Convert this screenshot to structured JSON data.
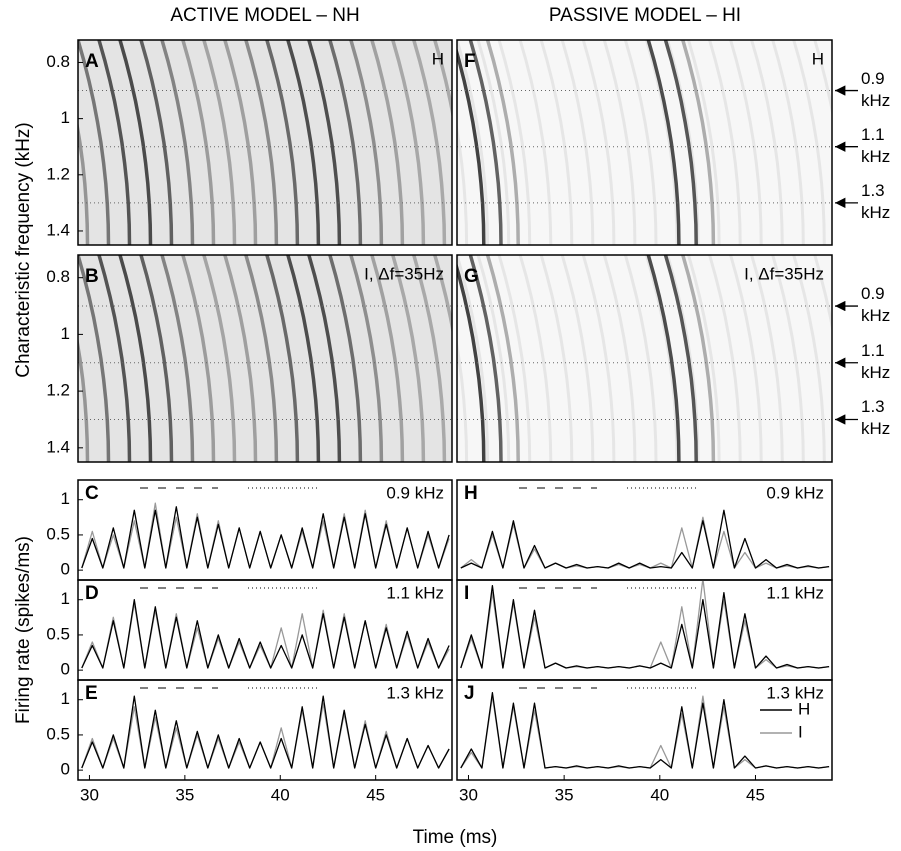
{
  "title_left": "ACTIVE MODEL – NH",
  "title_right": "PASSIVE MODEL – HI",
  "ylabel_top": "Characteristic frequency (kHz)",
  "ylabel_bottom": "Firing rate (spikes/ms)",
  "xlabel": "Time (ms)",
  "chart_data": [
    {
      "type": "image",
      "panel": "A",
      "annotation": "H",
      "xlim": [
        29.4,
        49
      ],
      "ylim": [
        0.72,
        1.45
      ],
      "yticks": [
        0.8,
        1,
        1.2,
        1.4
      ],
      "marker_lines": [
        0.9,
        1.1,
        1.3
      ]
    },
    {
      "type": "image",
      "panel": "F",
      "annotation": "H",
      "xlim": [
        29.4,
        49
      ],
      "ylim": [
        0.72,
        1.45
      ],
      "marker_lines": [
        0.9,
        1.1,
        1.3
      ],
      "marker_labels": [
        "0.9 kHz",
        "1.1 kHz",
        "1.3 kHz"
      ]
    },
    {
      "type": "image",
      "panel": "B",
      "annotation": "I, Δf=35Hz",
      "xlim": [
        29.4,
        49
      ],
      "ylim": [
        0.72,
        1.45
      ],
      "yticks": [
        0.8,
        1,
        1.2,
        1.4
      ],
      "marker_lines": [
        0.9,
        1.1,
        1.3
      ]
    },
    {
      "type": "image",
      "panel": "G",
      "annotation": "I, Δf=35Hz",
      "xlim": [
        29.4,
        49
      ],
      "ylim": [
        0.72,
        1.45
      ],
      "marker_lines": [
        0.9,
        1.1,
        1.3
      ],
      "marker_labels": [
        "0.9 kHz",
        "1.1 kHz",
        "1.3 kHz"
      ]
    },
    {
      "type": "line",
      "panel": "C",
      "annotation": "0.9 kHz",
      "xlim": [
        29.4,
        49
      ],
      "ylim": [
        -0.14,
        1.28
      ],
      "yticks": [
        0,
        0.5,
        1
      ],
      "x": [
        29.6,
        30.15,
        30.7,
        31.25,
        31.8,
        32.35,
        32.9,
        33.45,
        34,
        34.55,
        35.1,
        35.65,
        36.2,
        36.75,
        37.3,
        37.85,
        38.4,
        38.95,
        39.5,
        40.05,
        40.6,
        41.15,
        41.7,
        42.25,
        42.8,
        43.35,
        43.9,
        44.45,
        45,
        45.55,
        46.1,
        46.65,
        47.2,
        47.75,
        48.3,
        48.85
      ],
      "series": [
        {
          "name": "H",
          "color": "#000000",
          "values": [
            0.03,
            0.45,
            0.03,
            0.6,
            0.03,
            0.85,
            0.03,
            0.85,
            0.03,
            0.9,
            0.03,
            0.75,
            0.03,
            0.65,
            0.03,
            0.6,
            0.03,
            0.55,
            0.03,
            0.5,
            0.03,
            0.6,
            0.03,
            0.8,
            0.03,
            0.75,
            0.03,
            0.8,
            0.03,
            0.65,
            0.03,
            0.6,
            0.03,
            0.55,
            0.03,
            0.5
          ]
        },
        {
          "name": "I",
          "color": "#999999",
          "values": [
            0.03,
            0.55,
            0.03,
            0.5,
            0.03,
            0.7,
            0.03,
            0.95,
            0.03,
            0.75,
            0.03,
            0.8,
            0.03,
            0.7,
            0.03,
            0.6,
            0.03,
            0.55,
            0.03,
            0.5,
            0.03,
            0.55,
            0.03,
            0.7,
            0.03,
            0.8,
            0.03,
            0.85,
            0.03,
            0.7,
            0.03,
            0.6,
            0.03,
            0.5,
            0.03,
            0.45
          ]
        }
      ]
    },
    {
      "type": "line",
      "panel": "H",
      "annotation": "0.9 kHz",
      "xlim": [
        29.4,
        49
      ],
      "ylim": [
        -0.14,
        1.28
      ],
      "x": [
        29.6,
        30.15,
        30.7,
        31.25,
        31.8,
        32.35,
        32.9,
        33.45,
        34,
        34.55,
        35.1,
        35.65,
        36.2,
        36.75,
        37.3,
        37.85,
        38.4,
        38.95,
        39.5,
        40.05,
        40.6,
        41.15,
        41.7,
        42.25,
        42.8,
        43.35,
        43.9,
        44.45,
        45,
        45.55,
        46.1,
        46.65,
        47.2,
        47.75,
        48.3,
        48.85
      ],
      "series": [
        {
          "name": "H",
          "color": "#000000",
          "values": [
            0.03,
            0.1,
            0.03,
            0.55,
            0.03,
            0.7,
            0.03,
            0.35,
            0.03,
            0.1,
            0.03,
            0.08,
            0.03,
            0.05,
            0.03,
            0.1,
            0.03,
            0.1,
            0.03,
            0.05,
            0.03,
            0.25,
            0.03,
            0.7,
            0.03,
            0.85,
            0.03,
            0.45,
            0.03,
            0.15,
            0.03,
            0.08,
            0.03,
            0.06,
            0.03,
            0.05
          ]
        },
        {
          "name": "I",
          "color": "#999999",
          "values": [
            0.03,
            0.15,
            0.03,
            0.5,
            0.03,
            0.65,
            0.03,
            0.3,
            0.03,
            0.1,
            0.03,
            0.06,
            0.03,
            0.05,
            0.03,
            0.08,
            0.03,
            0.08,
            0.03,
            0.1,
            0.03,
            0.6,
            0.03,
            0.75,
            0.03,
            0.55,
            0.03,
            0.25,
            0.03,
            0.1,
            0.03,
            0.06,
            0.03,
            0.05,
            0.03,
            0.05
          ]
        }
      ]
    },
    {
      "type": "line",
      "panel": "D",
      "annotation": "1.1 kHz",
      "xlim": [
        29.4,
        49
      ],
      "ylim": [
        -0.14,
        1.28
      ],
      "yticks": [
        0,
        0.5,
        1
      ],
      "x": [
        29.6,
        30.15,
        30.7,
        31.25,
        31.8,
        32.35,
        32.9,
        33.45,
        34,
        34.55,
        35.1,
        35.65,
        36.2,
        36.75,
        37.3,
        37.85,
        38.4,
        38.95,
        39.5,
        40.05,
        40.6,
        41.15,
        41.7,
        42.25,
        42.8,
        43.35,
        43.9,
        44.45,
        45,
        45.55,
        46.1,
        46.65,
        47.2,
        47.75,
        48.3,
        48.85
      ],
      "series": [
        {
          "name": "H",
          "color": "#000000",
          "values": [
            0.03,
            0.35,
            0.03,
            0.7,
            0.03,
            1.0,
            0.03,
            0.9,
            0.03,
            0.75,
            0.03,
            0.7,
            0.03,
            0.5,
            0.03,
            0.45,
            0.03,
            0.4,
            0.03,
            0.35,
            0.03,
            0.5,
            0.03,
            0.8,
            0.03,
            0.75,
            0.03,
            0.7,
            0.03,
            0.6,
            0.03,
            0.55,
            0.03,
            0.45,
            0.03,
            0.35
          ]
        },
        {
          "name": "I",
          "color": "#999999",
          "values": [
            0.03,
            0.4,
            0.03,
            0.75,
            0.03,
            0.95,
            0.03,
            0.85,
            0.03,
            0.8,
            0.03,
            0.6,
            0.03,
            0.45,
            0.03,
            0.4,
            0.03,
            0.35,
            0.03,
            0.6,
            0.03,
            0.8,
            0.03,
            0.85,
            0.03,
            0.8,
            0.03,
            0.7,
            0.03,
            0.65,
            0.03,
            0.5,
            0.03,
            0.4,
            0.03,
            0.3
          ]
        }
      ]
    },
    {
      "type": "line",
      "panel": "I",
      "annotation": "1.1 kHz",
      "xlim": [
        29.4,
        49
      ],
      "ylim": [
        -0.14,
        1.28
      ],
      "x": [
        29.6,
        30.15,
        30.7,
        31.25,
        31.8,
        32.35,
        32.9,
        33.45,
        34,
        34.55,
        35.1,
        35.65,
        36.2,
        36.75,
        37.3,
        37.85,
        38.4,
        38.95,
        39.5,
        40.05,
        40.6,
        41.15,
        41.7,
        42.25,
        42.8,
        43.35,
        43.9,
        44.45,
        45,
        45.55,
        46.1,
        46.65,
        47.2,
        47.75,
        48.3,
        48.85
      ],
      "series": [
        {
          "name": "H",
          "color": "#000000",
          "values": [
            0.03,
            0.5,
            0.03,
            1.2,
            0.03,
            1.0,
            0.03,
            0.85,
            0.03,
            0.1,
            0.03,
            0.06,
            0.03,
            0.05,
            0.03,
            0.05,
            0.03,
            0.06,
            0.03,
            0.1,
            0.03,
            0.65,
            0.03,
            1.0,
            0.03,
            1.1,
            0.03,
            0.8,
            0.03,
            0.2,
            0.03,
            0.08,
            0.03,
            0.05,
            0.03,
            0.05
          ]
        },
        {
          "name": "I",
          "color": "#999999",
          "values": [
            0.03,
            0.45,
            0.03,
            1.1,
            0.03,
            0.95,
            0.03,
            0.75,
            0.03,
            0.1,
            0.03,
            0.05,
            0.03,
            0.05,
            0.03,
            0.05,
            0.03,
            0.06,
            0.03,
            0.4,
            0.03,
            0.9,
            0.03,
            1.3,
            0.03,
            1.0,
            0.03,
            0.7,
            0.03,
            0.15,
            0.03,
            0.06,
            0.03,
            0.05,
            0.03,
            0.05
          ]
        }
      ]
    },
    {
      "type": "line",
      "panel": "E",
      "annotation": "1.3 kHz",
      "xlim": [
        29.4,
        49
      ],
      "ylim": [
        -0.14,
        1.28
      ],
      "yticks": [
        0,
        0.5,
        1
      ],
      "xticks": [
        30,
        35,
        40,
        45
      ],
      "x": [
        29.6,
        30.15,
        30.7,
        31.25,
        31.8,
        32.35,
        32.9,
        33.45,
        34,
        34.55,
        35.1,
        35.65,
        36.2,
        36.75,
        37.3,
        37.85,
        38.4,
        38.95,
        39.5,
        40.05,
        40.6,
        41.15,
        41.7,
        42.25,
        42.8,
        43.35,
        43.9,
        44.45,
        45,
        45.55,
        46.1,
        46.65,
        47.2,
        47.75,
        48.3,
        48.85
      ],
      "series": [
        {
          "name": "H",
          "color": "#000000",
          "values": [
            0.03,
            0.4,
            0.03,
            0.5,
            0.03,
            1.05,
            0.03,
            0.85,
            0.03,
            0.7,
            0.03,
            0.55,
            0.03,
            0.5,
            0.03,
            0.45,
            0.03,
            0.4,
            0.03,
            0.45,
            0.03,
            0.9,
            0.03,
            1.05,
            0.03,
            0.85,
            0.03,
            0.65,
            0.03,
            0.5,
            0.03,
            0.45,
            0.03,
            0.35,
            0.03,
            0.3
          ]
        },
        {
          "name": "I",
          "color": "#999999",
          "values": [
            0.03,
            0.45,
            0.03,
            0.45,
            0.03,
            0.9,
            0.03,
            0.75,
            0.03,
            0.6,
            0.03,
            0.5,
            0.03,
            0.45,
            0.03,
            0.4,
            0.03,
            0.4,
            0.03,
            0.6,
            0.03,
            0.85,
            0.03,
            0.95,
            0.03,
            0.8,
            0.03,
            0.7,
            0.03,
            0.55,
            0.03,
            0.45,
            0.03,
            0.35,
            0.03,
            0.3
          ]
        }
      ]
    },
    {
      "type": "line",
      "panel": "J",
      "annotation": "1.3 kHz",
      "xlim": [
        29.4,
        49
      ],
      "ylim": [
        -0.14,
        1.28
      ],
      "xticks": [
        30,
        35,
        40,
        45
      ],
      "legend": "right",
      "x": [
        29.6,
        30.15,
        30.7,
        31.25,
        31.8,
        32.35,
        32.9,
        33.45,
        34,
        34.55,
        35.1,
        35.65,
        36.2,
        36.75,
        37.3,
        37.85,
        38.4,
        38.95,
        39.5,
        40.05,
        40.6,
        41.15,
        41.7,
        42.25,
        42.8,
        43.35,
        43.9,
        44.45,
        45,
        45.55,
        46.1,
        46.65,
        47.2,
        47.75,
        48.3,
        48.85
      ],
      "series": [
        {
          "name": "H",
          "color": "#000000",
          "values": [
            0.03,
            0.3,
            0.03,
            1.1,
            0.03,
            0.95,
            0.03,
            0.95,
            0.03,
            0.05,
            0.03,
            0.06,
            0.03,
            0.05,
            0.03,
            0.06,
            0.03,
            0.05,
            0.03,
            0.15,
            0.03,
            0.9,
            0.03,
            0.95,
            0.03,
            1.0,
            0.03,
            0.2,
            0.03,
            0.06,
            0.03,
            0.05,
            0.03,
            0.05,
            0.03,
            0.05
          ]
        },
        {
          "name": "I",
          "color": "#999999",
          "values": [
            0.03,
            0.25,
            0.03,
            1.05,
            0.03,
            0.9,
            0.03,
            0.85,
            0.03,
            0.05,
            0.03,
            0.05,
            0.03,
            0.05,
            0.03,
            0.05,
            0.03,
            0.05,
            0.03,
            0.35,
            0.03,
            0.8,
            0.03,
            1.05,
            0.03,
            0.9,
            0.03,
            0.15,
            0.03,
            0.06,
            0.03,
            0.05,
            0.03,
            0.05,
            0.03,
            0.05
          ]
        }
      ]
    }
  ]
}
